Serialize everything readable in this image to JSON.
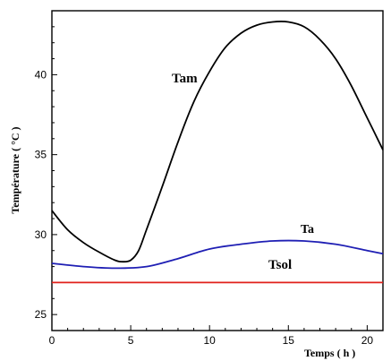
{
  "chart_data": {
    "type": "line",
    "xlabel": "Temps ( h )",
    "ylabel": "Température ( °C )",
    "xlim": [
      0,
      21
    ],
    "ylim": [
      24,
      44
    ],
    "x_ticks": [
      "0",
      "5",
      "10",
      "15",
      "20"
    ],
    "y_ticks": [
      "25",
      "30",
      "35",
      "40"
    ],
    "grid": false,
    "series": [
      {
        "name": "Tam",
        "color": "#000000",
        "x": [
          0,
          1,
          2,
          3,
          4,
          4.5,
          5,
          5.5,
          6,
          7,
          8,
          9,
          10,
          11,
          12,
          13,
          14,
          15,
          16,
          17,
          18,
          19,
          20,
          21
        ],
        "y": [
          31.5,
          30.3,
          29.5,
          28.9,
          28.4,
          28.3,
          28.4,
          29.0,
          30.3,
          33.0,
          35.8,
          38.3,
          40.2,
          41.7,
          42.6,
          43.1,
          43.3,
          43.3,
          43.0,
          42.2,
          41.0,
          39.3,
          37.3,
          35.3
        ]
      },
      {
        "name": "Ta",
        "color": "#1f1fb4",
        "x": [
          0,
          2,
          4,
          6,
          8,
          10,
          12,
          14,
          16,
          18,
          20,
          21
        ],
        "y": [
          28.2,
          28.0,
          27.9,
          28.0,
          28.5,
          29.1,
          29.4,
          29.6,
          29.6,
          29.4,
          29.0,
          28.8
        ]
      },
      {
        "name": "Tsol",
        "color": "#e0201a",
        "x": [
          0,
          21
        ],
        "y": [
          27.0,
          27.0
        ]
      }
    ]
  }
}
